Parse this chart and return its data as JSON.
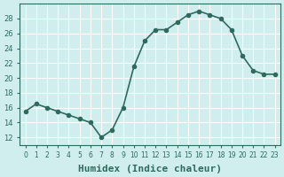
{
  "x": [
    0,
    1,
    2,
    3,
    4,
    5,
    6,
    7,
    8,
    9,
    10,
    11,
    12,
    13,
    14,
    15,
    16,
    17,
    18,
    19,
    20,
    21,
    22,
    23
  ],
  "y": [
    15.5,
    16.5,
    16.0,
    15.5,
    15.0,
    14.5,
    14.0,
    12.0,
    13.0,
    16.0,
    21.5,
    25.0,
    26.5,
    26.5,
    27.5,
    28.5,
    29.0,
    28.5,
    28.0,
    26.5,
    23.0,
    21.0,
    20.5,
    20.5
  ],
  "xlabel": "Humidex (Indice chaleur)",
  "ylim": [
    11,
    30
  ],
  "xlim": [
    -0.5,
    23.5
  ],
  "yticks": [
    12,
    14,
    16,
    18,
    20,
    22,
    24,
    26,
    28
  ],
  "xticks": [
    0,
    1,
    2,
    3,
    4,
    5,
    6,
    7,
    8,
    9,
    10,
    11,
    12,
    13,
    14,
    15,
    16,
    17,
    18,
    19,
    20,
    21,
    22,
    23
  ],
  "line_color": "#2e6b5e",
  "marker": "o",
  "marker_size": 3,
  "bg_color": "#d0eeee",
  "grid_color": "#ffffff",
  "axis_color": "#2e6b5e",
  "label_fontsize": 8
}
